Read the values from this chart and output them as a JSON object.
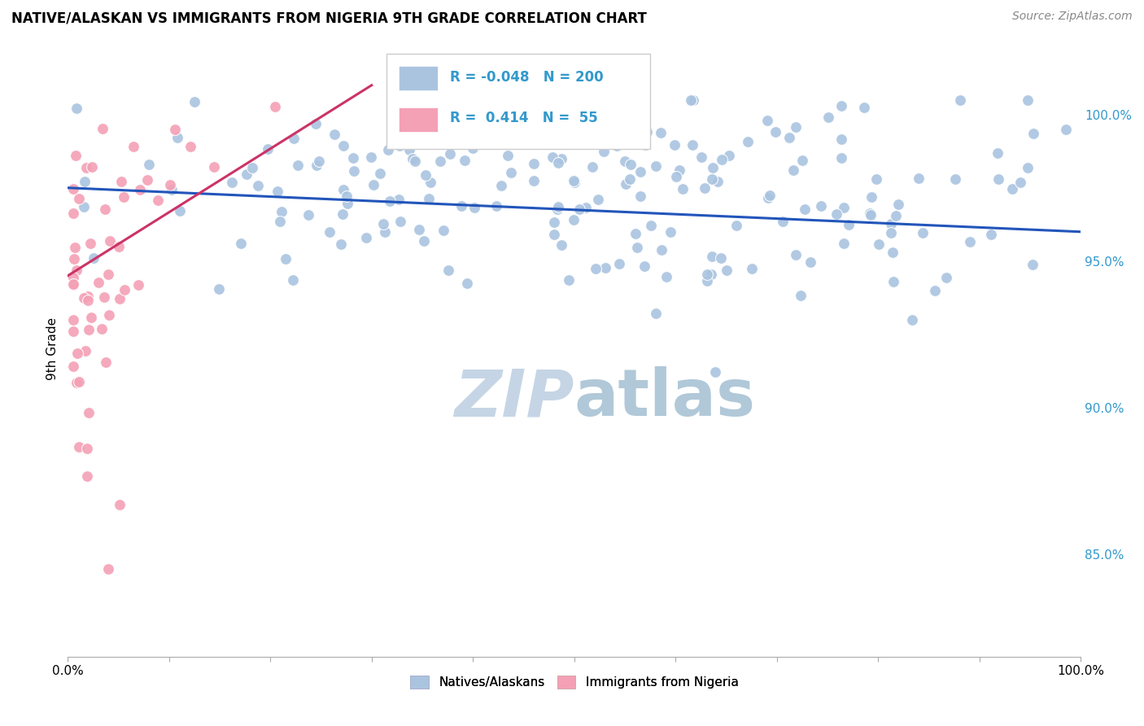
{
  "title": "NATIVE/ALASKAN VS IMMIGRANTS FROM NIGERIA 9TH GRADE CORRELATION CHART",
  "source_text": "Source: ZipAtlas.com",
  "ylabel": "9th Grade",
  "ytick_labels": [
    "85.0%",
    "90.0%",
    "95.0%",
    "100.0%"
  ],
  "ytick_values": [
    0.85,
    0.9,
    0.95,
    1.0
  ],
  "legend_r_blue": "-0.048",
  "legend_n_blue": "200",
  "legend_r_pink": "0.414",
  "legend_n_pink": "55",
  "blue_color": "#aac4e0",
  "pink_color": "#f4a0b5",
  "blue_line_color": "#2255bb",
  "pink_line_color": "#cc3366",
  "watermark_zip_color": "#c5d5e5",
  "watermark_atlas_color": "#b0c8d8",
  "background_color": "#ffffff",
  "grid_color": "#d8d8d8",
  "right_axis_color": "#3399cc",
  "title_fontsize": 12,
  "source_fontsize": 10,
  "scatter_size": 100,
  "xmin": 0.0,
  "xmax": 1.0,
  "ymin": 0.815,
  "ymax": 1.025,
  "blue_trend_start_y": 0.975,
  "blue_trend_end_y": 0.96,
  "pink_trend_start_y": 0.945,
  "pink_trend_end_y": 1.01
}
